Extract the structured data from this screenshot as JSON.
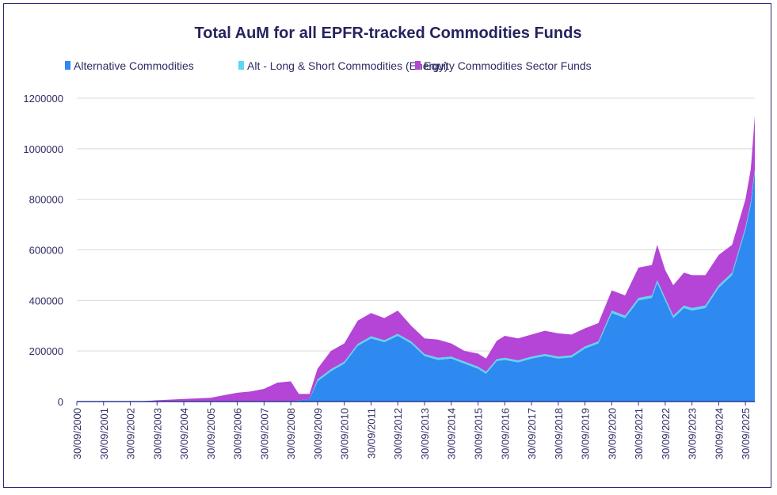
{
  "chart_data": {
    "type": "area",
    "stacked": true,
    "title": "Total AuM for all EPFR-tracked Commodities Funds",
    "xlabel": "",
    "ylabel": "",
    "ylim": [
      0,
      1200000
    ],
    "yticks": [
      0,
      200000,
      400000,
      600000,
      800000,
      1000000,
      1200000
    ],
    "ytick_labels": [
      "0",
      "200000",
      "400000",
      "600000",
      "800000",
      "1000000",
      "1200000"
    ],
    "xtick_labels": [
      "30/09/2000",
      "30/09/2001",
      "30/09/2002",
      "30/09/2003",
      "30/09/2004",
      "30/09/2005",
      "30/09/2006",
      "30/09/2007",
      "30/09/2008",
      "30/09/2009",
      "30/09/2010",
      "30/09/2011",
      "30/09/2012",
      "30/09/2013",
      "30/09/2014",
      "30/09/2015",
      "30/09/2016",
      "30/09/2017",
      "30/09/2018",
      "30/09/2019",
      "30/09/2020",
      "30/09/2021",
      "30/09/2022",
      "30/09/2023",
      "30/09/2024",
      "30/09/2025"
    ],
    "grid": true,
    "legend_position": "top",
    "x": [
      2000.75,
      2003.0,
      2003.75,
      2004.75,
      2005.75,
      2006.25,
      2006.75,
      2007.25,
      2007.75,
      2008.25,
      2008.75,
      2009.05,
      2009.45,
      2009.75,
      2010.25,
      2010.75,
      2011.25,
      2011.75,
      2012.25,
      2012.75,
      2013.25,
      2013.75,
      2014.25,
      2014.75,
      2015.25,
      2015.75,
      2016.05,
      2016.45,
      2016.75,
      2017.25,
      2017.75,
      2018.25,
      2018.75,
      2019.25,
      2019.75,
      2020.25,
      2020.75,
      2021.25,
      2021.75,
      2022.25,
      2022.45,
      2022.75,
      2023.05,
      2023.45,
      2023.75,
      2024.25,
      2024.75,
      2025.25,
      2025.75,
      2025.95,
      2026.1
    ],
    "series": [
      {
        "name": "Alternative Commodities",
        "color": "#2e89f0",
        "values": [
          0,
          0,
          0,
          0,
          0,
          0,
          0,
          0,
          0,
          0,
          0,
          5000,
          10000,
          80000,
          120000,
          150000,
          220000,
          250000,
          235000,
          260000,
          230000,
          180000,
          165000,
          170000,
          150000,
          130000,
          110000,
          160000,
          165000,
          155000,
          170000,
          180000,
          170000,
          175000,
          210000,
          230000,
          350000,
          330000,
          400000,
          410000,
          470000,
          400000,
          330000,
          370000,
          360000,
          370000,
          450000,
          500000,
          680000,
          780000,
          910000
        ]
      },
      {
        "name": "Alt - Long & Short Commodities (Energy)",
        "color": "#5bd6f5",
        "values": [
          0,
          0,
          0,
          0,
          0,
          0,
          0,
          0,
          0,
          0,
          0,
          0,
          0,
          8000,
          8000,
          8000,
          8000,
          8000,
          8000,
          8000,
          8000,
          8000,
          8000,
          8000,
          8000,
          8000,
          8000,
          8000,
          8000,
          8000,
          8000,
          8000,
          8000,
          8000,
          8000,
          8000,
          10000,
          10000,
          10000,
          10000,
          10000,
          10000,
          10000,
          10000,
          10000,
          10000,
          10000,
          10000,
          10000,
          10000,
          10000
        ]
      },
      {
        "name": "Equity Commodities Sector Funds",
        "color": "#b445d6",
        "values": [
          0,
          0,
          5000,
          10000,
          15000,
          25000,
          35000,
          40000,
          50000,
          75000,
          80000,
          25000,
          20000,
          42000,
          72000,
          72000,
          92000,
          92000,
          87000,
          92000,
          62000,
          62000,
          72000,
          52000,
          42000,
          52000,
          52000,
          72000,
          87000,
          87000,
          87000,
          92000,
          92000,
          82000,
          72000,
          72000,
          80000,
          80000,
          120000,
          120000,
          140000,
          110000,
          120000,
          130000,
          130000,
          120000,
          120000,
          110000,
          110000,
          130000,
          210000
        ]
      }
    ]
  }
}
